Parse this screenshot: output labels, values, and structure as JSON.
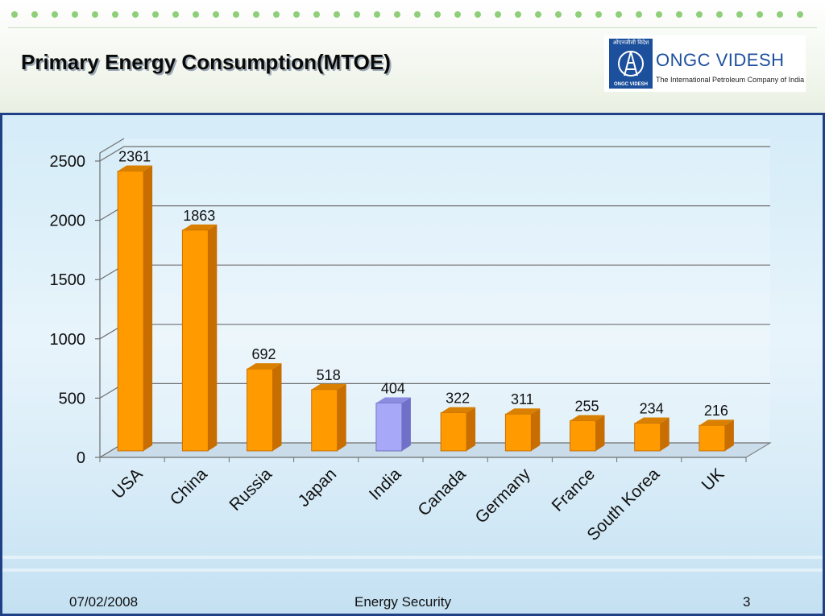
{
  "slide": {
    "title": "Primary Energy Consumption(MTOE)"
  },
  "logo": {
    "name": "ONGC VIDESH",
    "tagline": "The International Petroleum Company of India",
    "emblem_top_text": "ओएनजीसी विदेश",
    "emblem_bottom_text": "ONGC VIDESH"
  },
  "footer": {
    "date": "07/02/2008",
    "topic": "Energy Security",
    "page_number": "3"
  },
  "colors": {
    "bar_default": "#ff9a00",
    "bar_highlight": "#a8a8f8",
    "accent_blue": "#1f3f86"
  },
  "chart_data": {
    "type": "bar",
    "title": "",
    "xlabel": "",
    "ylabel": "",
    "categories": [
      "USA",
      "China",
      "Russia",
      "Japan",
      "India",
      "Canada",
      "Germany",
      "France",
      "South Korea",
      "UK"
    ],
    "values": [
      2361,
      1863,
      692,
      518,
      404,
      322,
      311,
      255,
      234,
      216
    ],
    "highlighted_category": "India",
    "ylim": [
      0,
      2500
    ],
    "yticks": [
      0,
      500,
      1000,
      1500,
      2000,
      2500
    ],
    "grid": true,
    "legend": "none",
    "style": "3d-bars"
  }
}
